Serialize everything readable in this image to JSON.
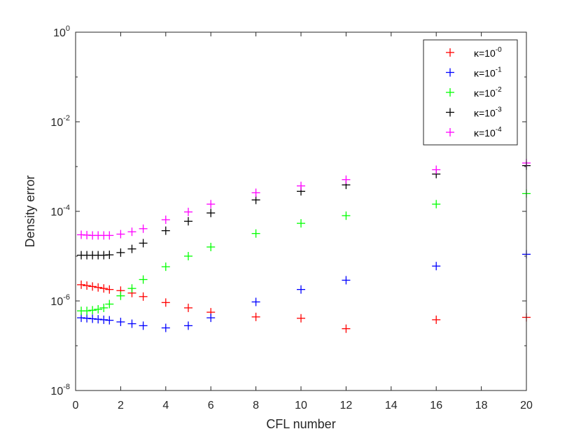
{
  "chart_data": {
    "type": "scatter",
    "title": "",
    "xlabel": "CFL number",
    "ylabel": "Density error",
    "xlim": [
      0,
      20
    ],
    "ylim": [
      1e-08,
      1
    ],
    "yscale": "log",
    "grid": false,
    "legend_position": "top-right",
    "marker": "+",
    "xticks": [
      0,
      2,
      4,
      6,
      8,
      10,
      12,
      14,
      16,
      18,
      20
    ],
    "yticks": [
      {
        "value": 1e-08,
        "base": "10",
        "exp": "-8"
      },
      {
        "value": 1e-06,
        "base": "10",
        "exp": "-6"
      },
      {
        "value": 0.0001,
        "base": "10",
        "exp": "-4"
      },
      {
        "value": 0.01,
        "base": "10",
        "exp": "-2"
      },
      {
        "value": 1,
        "base": "10",
        "exp": "0"
      }
    ],
    "series": [
      {
        "name": "κ=10^-0",
        "label_prefix": "κ=10",
        "label_exp": "-0",
        "color": "#ff0000",
        "x": [
          0.25,
          0.5,
          0.75,
          1.0,
          1.25,
          1.5,
          2,
          2.5,
          3,
          4,
          5,
          6,
          8,
          10,
          12,
          16,
          20
        ],
        "y": [
          2.3e-06,
          2.2e-06,
          2.1e-06,
          2e-06,
          1.9e-06,
          1.8e-06,
          1.7e-06,
          1.5e-06,
          1.25e-06,
          9.2e-07,
          7e-07,
          5.6e-07,
          4.4e-07,
          4.1e-07,
          2.4e-07,
          3.8e-07,
          4.3e-07
        ]
      },
      {
        "name": "κ=10^-1",
        "label_prefix": "κ=10",
        "label_exp": "-1",
        "color": "#0000ff",
        "x": [
          0.25,
          0.5,
          0.75,
          1.0,
          1.25,
          1.5,
          2,
          2.5,
          3,
          4,
          5,
          6,
          8,
          10,
          12,
          16,
          20
        ],
        "y": [
          4.2e-07,
          4.1e-07,
          4e-07,
          3.9e-07,
          3.8e-07,
          3.7e-07,
          3.4e-07,
          3.1e-07,
          2.8e-07,
          2.5e-07,
          2.8e-07,
          4.2e-07,
          9.5e-07,
          1.8e-06,
          2.9e-06,
          6e-06,
          1.1e-05
        ]
      },
      {
        "name": "κ=10^-2",
        "label_prefix": "κ=10",
        "label_exp": "-2",
        "color": "#00ff00",
        "x": [
          0.25,
          0.5,
          0.75,
          1.0,
          1.25,
          1.5,
          2,
          2.5,
          3,
          4,
          5,
          6,
          8,
          10,
          12,
          16,
          20
        ],
        "y": [
          6e-07,
          6e-07,
          6.2e-07,
          6.5e-07,
          7e-07,
          8.5e-07,
          1.3e-06,
          1.9e-06,
          3e-06,
          5.8e-06,
          1e-05,
          1.6e-05,
          3.2e-05,
          5.4e-05,
          8e-05,
          0.000145,
          0.00025
        ]
      },
      {
        "name": "κ=10^-3",
        "label_prefix": "κ=10",
        "label_exp": "-3",
        "color": "#000000",
        "x": [
          0.25,
          0.5,
          0.75,
          1.0,
          1.25,
          1.5,
          2,
          2.5,
          3,
          4,
          5,
          6,
          8,
          10,
          12,
          16,
          20
        ],
        "y": [
          1.05e-05,
          1.05e-05,
          1.05e-05,
          1.05e-05,
          1.05e-05,
          1.07e-05,
          1.2e-05,
          1.45e-05,
          1.95e-05,
          3.7e-05,
          6e-05,
          9.2e-05,
          0.00018,
          0.00028,
          0.00039,
          0.00068,
          0.00105
        ]
      },
      {
        "name": "κ=10^-4",
        "label_prefix": "κ=10",
        "label_exp": "-4",
        "color": "#ff00ff",
        "x": [
          0.25,
          0.5,
          0.75,
          1.0,
          1.25,
          1.5,
          2,
          2.5,
          3,
          4,
          5,
          6,
          8,
          10,
          12,
          16,
          20
        ],
        "y": [
          3e-05,
          2.95e-05,
          2.9e-05,
          2.9e-05,
          2.9e-05,
          2.9e-05,
          3.1e-05,
          3.5e-05,
          4.1e-05,
          6.5e-05,
          9.7e-05,
          0.000145,
          0.00026,
          0.00037,
          0.00051,
          0.00085,
          0.0012
        ]
      }
    ]
  }
}
